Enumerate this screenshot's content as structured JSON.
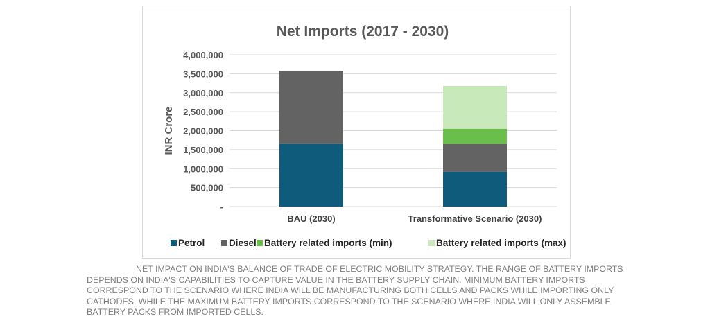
{
  "chart_data": {
    "type": "bar",
    "stacked": true,
    "title": "Net Imports (2017 - 2030)",
    "xlabel": "",
    "ylabel": "INR Crore",
    "ylim": [
      0,
      4000000
    ],
    "yticks": [
      0,
      500000,
      1000000,
      1500000,
      2000000,
      2500000,
      3000000,
      3500000,
      4000000
    ],
    "ytick_labels": [
      "-",
      "500,000",
      "1,000,000",
      "1,500,000",
      "2,000,000",
      "2,500,000",
      "3,000,000",
      "3,500,000",
      "4,000,000"
    ],
    "grid": true,
    "legend_position": "bottom",
    "categories": [
      "BAU (2030)",
      "Transformative Scenario (2030)"
    ],
    "series": [
      {
        "name": "Petrol",
        "color": "#0e5b7b",
        "values": [
          1650000,
          920000
        ]
      },
      {
        "name": "Diesel",
        "color": "#636363",
        "values": [
          1920000,
          730000
        ]
      },
      {
        "name": "Battery related imports (min)",
        "color": "#6abf4b",
        "values": [
          0,
          400000
        ]
      },
      {
        "name": "Battery related imports (max)",
        "color": "#c8e9b9",
        "values": [
          0,
          1130000
        ]
      }
    ]
  },
  "caption": "NET IMPACT ON INDIA'S BALANCE OF TRADE OF ELECTRIC MOBILITY STRATEGY. THE RANGE OF BATTERY IMPORTS DEPENDS ON INDIA'S CAPABILITIES TO CAPTURE VALUE IN THE BATTERY SUPPLY CHAIN. MINIMUM BATTERY IMPORTS CORRESPOND TO THE SCENARIO WHERE INDIA WILL BE MANUFACTURING BOTH CELLS AND PACKS WHILE IMPORTING ONLY CATHODES, WHILE THE MAXIMUM BATTERY IMPORTS CORRESPOND TO THE SCENARIO WHERE INDIA WILL ONLY ASSEMBLE BATTERY PACKS FROM IMPORTED CELLS."
}
